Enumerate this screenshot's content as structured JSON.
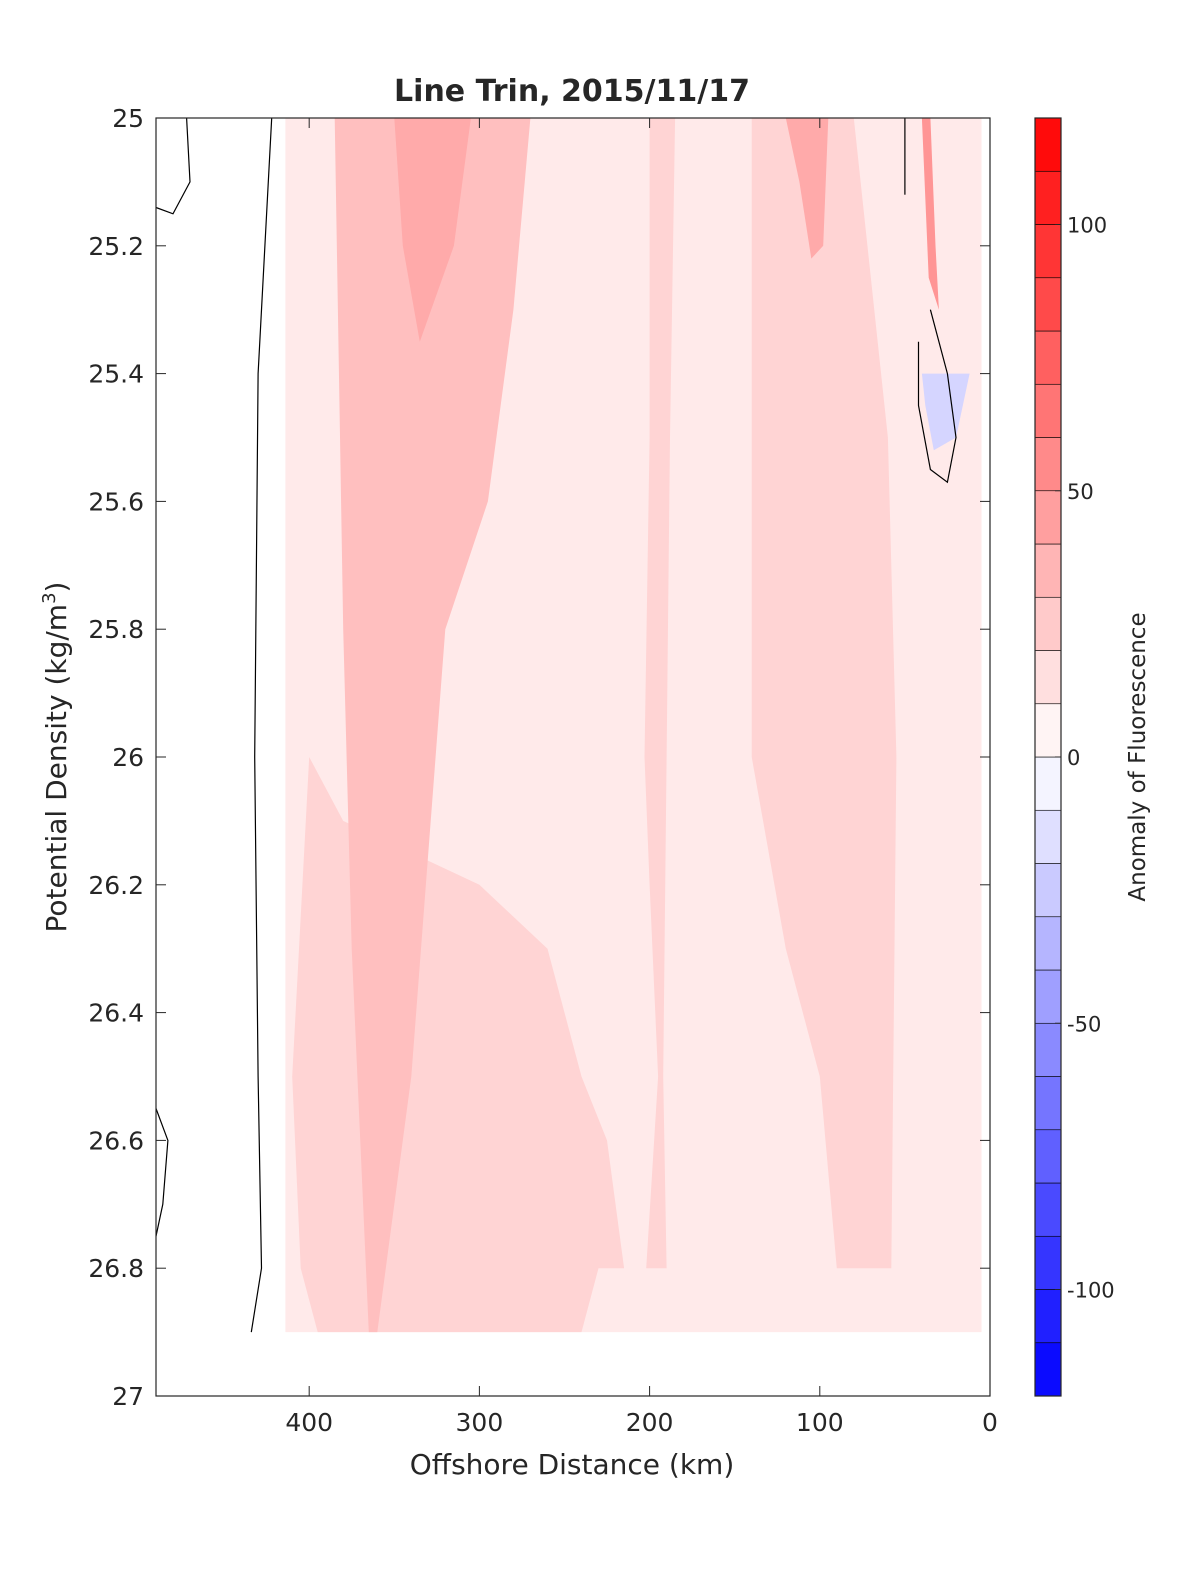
{
  "chart_data": {
    "type": "heatmap",
    "subtype": "filled-contour",
    "title": "Line Trin, 2015/11/17",
    "xlabel": "Offshore Distance (km)",
    "ylabel": "Potential Density (kg/m",
    "ylabel_sup": "3",
    "ylabel_close": ")",
    "colorbar_label": "Anomaly of Fluorescence",
    "xlim": [
      490,
      0
    ],
    "x_reversed": true,
    "ylim": [
      25,
      27
    ],
    "y_reversed": true,
    "xticks": [
      400,
      300,
      200,
      100,
      0
    ],
    "yticks": [
      25,
      25.2,
      25.4,
      25.6,
      25.8,
      26,
      26.2,
      26.4,
      26.6,
      26.8,
      27
    ],
    "ytick_labels": [
      "25",
      "25.2",
      "25.4",
      "25.6",
      "25.8",
      "26",
      "26.2",
      "26.4",
      "26.6",
      "26.8",
      "27"
    ],
    "color_limits": [
      -120,
      120
    ],
    "colorbar_ticks": [
      100,
      50,
      0,
      -50,
      -100
    ],
    "contour_levels": [
      -120,
      -110,
      -100,
      -90,
      -80,
      -70,
      -60,
      -50,
      -40,
      -30,
      -20,
      -10,
      0,
      10,
      20,
      30,
      40,
      50,
      60,
      70,
      80,
      90,
      100,
      110,
      120
    ],
    "colormap": {
      "low": "#0000ff",
      "mid": "#ffffff",
      "high": "#ff0000"
    },
    "anomaly_fields": [
      {
        "level": 10,
        "polygon": [
          [
            414,
            25
          ],
          [
            5,
            25
          ],
          [
            5,
            26.9
          ],
          [
            414,
            26.9
          ]
        ]
      },
      {
        "level": 20,
        "polygon": [
          [
            405,
            25
          ],
          [
            185,
            25
          ],
          [
            188,
            25.5
          ],
          [
            190,
            26.0
          ],
          [
            192,
            26.5
          ],
          [
            190,
            26.8
          ],
          [
            202,
            26.8
          ],
          [
            195,
            26.5
          ],
          [
            200,
            26.2
          ],
          [
            203,
            26.0
          ],
          [
            200,
            25.5
          ],
          [
            200,
            25.0
          ]
        ]
      },
      {
        "level": 20,
        "polygon": [
          [
            400,
            26.0
          ],
          [
            410,
            26.5
          ],
          [
            405,
            26.8
          ],
          [
            395,
            26.9
          ],
          [
            265,
            26.9
          ],
          [
            240,
            26.9
          ],
          [
            230,
            26.8
          ],
          [
            215,
            26.8
          ],
          [
            225,
            26.6
          ],
          [
            240,
            26.5
          ],
          [
            260,
            26.3
          ],
          [
            300,
            26.2
          ],
          [
            380,
            26.1
          ]
        ]
      },
      {
        "level": 20,
        "polygon": [
          [
            140,
            25
          ],
          [
            80,
            25
          ],
          [
            60,
            25.5
          ],
          [
            55,
            26.0
          ],
          [
            58,
            26.8
          ],
          [
            90,
            26.8
          ],
          [
            100,
            26.5
          ],
          [
            120,
            26.3
          ],
          [
            140,
            26.0
          ]
        ]
      },
      {
        "level": 30,
        "polygon": [
          [
            375,
            25
          ],
          [
            270,
            25
          ],
          [
            280,
            25.3
          ],
          [
            295,
            25.6
          ],
          [
            320,
            25.8
          ],
          [
            340,
            26.5
          ],
          [
            360,
            26.9
          ],
          [
            365,
            26.9
          ],
          [
            375,
            26.3
          ],
          [
            380,
            25.8
          ],
          [
            385,
            25.0
          ]
        ]
      },
      {
        "level": 40,
        "polygon": [
          [
            350,
            25
          ],
          [
            305,
            25
          ],
          [
            315,
            25.2
          ],
          [
            335,
            25.35
          ],
          [
            345,
            25.2
          ]
        ]
      },
      {
        "level": 40,
        "polygon": [
          [
            120,
            25
          ],
          [
            95,
            25
          ],
          [
            98,
            25.2
          ],
          [
            105,
            25.22
          ],
          [
            112,
            25.1
          ]
        ]
      },
      {
        "level": 50,
        "polygon": [
          [
            40,
            25
          ],
          [
            35,
            25
          ],
          [
            32,
            25.2
          ],
          [
            30,
            25.3
          ],
          [
            36,
            25.25
          ]
        ]
      },
      {
        "level": -20,
        "polygon": [
          [
            40,
            25.4
          ],
          [
            12,
            25.4
          ],
          [
            20,
            25.5
          ],
          [
            33,
            25.52
          ],
          [
            38,
            25.45
          ]
        ]
      }
    ],
    "zero_contour_lines": [
      [
        [
          472,
          25
        ],
        [
          470,
          25.1
        ],
        [
          480,
          25.15
        ],
        [
          490,
          25.14
        ]
      ],
      [
        [
          422,
          25
        ],
        [
          430,
          25.4
        ],
        [
          432,
          26.0
        ],
        [
          430,
          26.5
        ],
        [
          428,
          26.8
        ],
        [
          434,
          26.9
        ]
      ],
      [
        [
          490,
          26.55
        ],
        [
          483,
          26.6
        ],
        [
          486,
          26.7
        ],
        [
          490,
          26.75
        ]
      ],
      [
        [
          50,
          25
        ],
        [
          50,
          25.12
        ]
      ],
      [
        [
          35,
          25.3
        ],
        [
          25,
          25.4
        ],
        [
          20,
          25.5
        ],
        [
          25,
          25.57
        ],
        [
          35,
          25.55
        ],
        [
          42,
          25.45
        ],
        [
          42,
          25.35
        ]
      ]
    ]
  }
}
